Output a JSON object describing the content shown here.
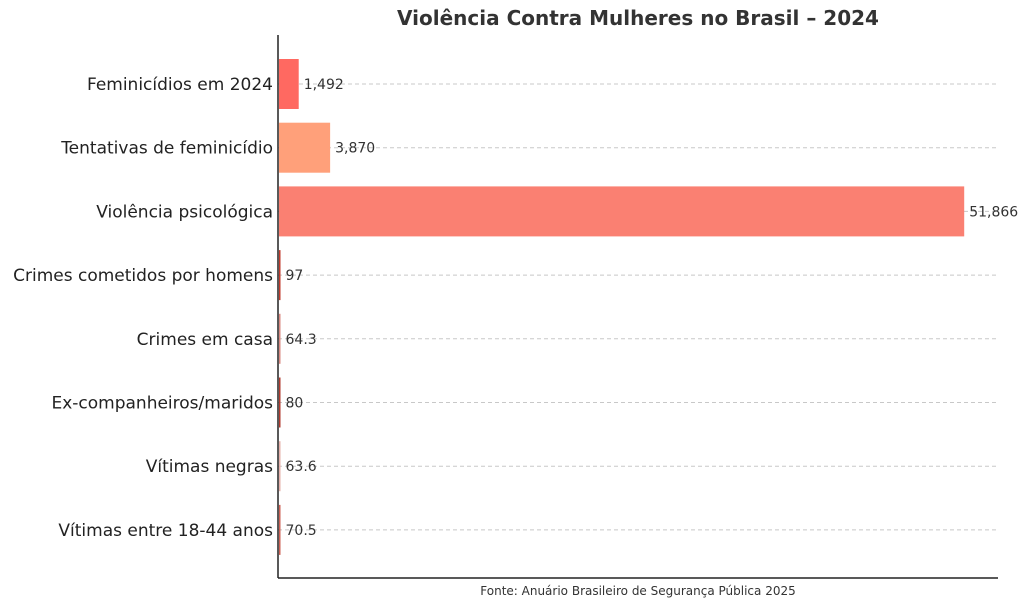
{
  "chart_data": {
    "type": "bar",
    "orientation": "horizontal",
    "title": "Violência Contra Mulheres no Brasil – 2024",
    "xlabel": "",
    "ylabel": "",
    "categories": [
      "Feminicídios em 2024",
      "Tentativas de feminicídio",
      "Violência psicológica",
      "Crimes cometidos por homens",
      "Crimes em casa",
      "Ex-companheiros/maridos",
      "Vítimas negras",
      "Vítimas entre 18-44 anos"
    ],
    "values": [
      1492,
      3870,
      51866,
      97,
      64.3,
      80,
      63.6,
      70.5
    ],
    "value_labels": [
      "1,492",
      "3,870",
      "51,866",
      "97",
      "64.3",
      "80",
      "63.6",
      "70.5"
    ],
    "colors": [
      "#ff6961",
      "#ffa07a",
      "#fa8072",
      "#c0392b",
      "#d98880",
      "#b03a2e",
      "#e6b0aa",
      "#cd6155"
    ],
    "xlim": [
      0,
      54500
    ],
    "grid": true,
    "source": "Fonte: Anuário Brasileiro de Segurança Pública 2025"
  }
}
